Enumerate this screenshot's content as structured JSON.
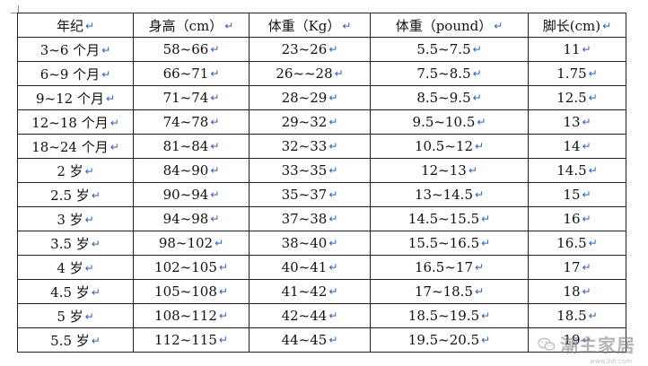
{
  "table": {
    "headers": [
      "年纪",
      "身高（cm）",
      "体重（Kg）",
      "体重（pound）",
      "脚长(cm)"
    ],
    "rows": [
      [
        "3~6 个月",
        "58~66",
        "23~26",
        "5.5~7.5",
        "11"
      ],
      [
        "6~9 个月",
        "66~71",
        "26~~28",
        "7.5~8.5",
        "1.75"
      ],
      [
        "9~12 个月",
        "71~74",
        "28~29",
        "8.5~9.5",
        "12.5"
      ],
      [
        "12~18 个月",
        "74~78",
        "29~32",
        "9.5~10.5",
        "13"
      ],
      [
        "18~24 个月",
        "81~84",
        "32~33",
        "10.5~12",
        "14"
      ],
      [
        "2 岁",
        "84~90",
        "33~35",
        "12~13",
        "14.5"
      ],
      [
        "2.5 岁",
        "90~94",
        "35~37",
        "13~14.5",
        "15"
      ],
      [
        "3 岁",
        "94~98",
        "37~38",
        "14.5~15.5",
        "16"
      ],
      [
        "3.5 岁",
        "98~102",
        "38~40",
        "15.5~16.5",
        "16.5"
      ],
      [
        "4 岁",
        "102~105",
        "40~41",
        "16.5~17",
        "17"
      ],
      [
        "4.5 岁",
        "105~108",
        "41~42",
        "17~18.5",
        "18"
      ],
      [
        "5 岁",
        "108~112",
        "42~44",
        "18.5~19.5",
        "18.5"
      ],
      [
        "5.5 岁",
        "112~115",
        "44~45",
        "19.5~20.5",
        "19"
      ]
    ]
  },
  "paragraph_mark": "↵",
  "watermark": {
    "text": "潮主家居",
    "url": "www.jbh.com",
    "icon": "wechat-icon",
    "color": "#7a7a7a"
  },
  "colors": {
    "border": "#222222",
    "paragraph_mark": "#2f5fb3"
  }
}
